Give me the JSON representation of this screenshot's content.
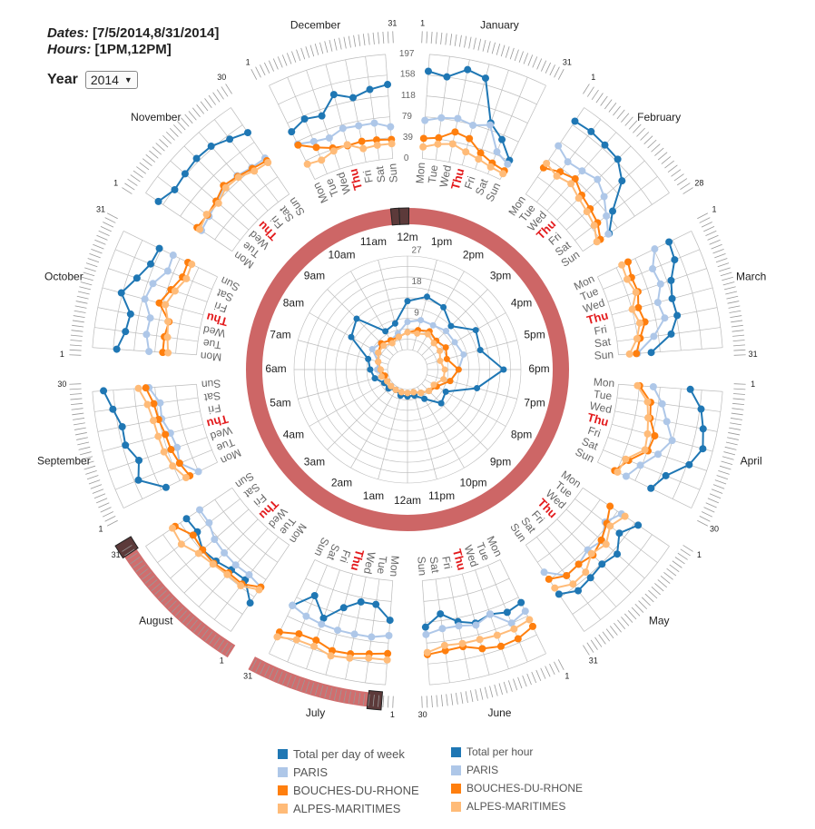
{
  "info": {
    "dates_label": "Dates:",
    "dates_value": "[7/5/2014,8/31/2014]",
    "hours_label": "Hours:",
    "hours_value": "[1PM,12PM]"
  },
  "year_selector": {
    "label": "Year",
    "value": "2014"
  },
  "colors": {
    "total": "#1f77b4",
    "paris": "#aec7e8",
    "bdr": "#ff7f0e",
    "am": "#ffbb78",
    "ring": "#cd6666",
    "ring_handle": "#5c3a3a",
    "thu": "#e31a1c",
    "grid": "#bbbbbb"
  },
  "legend_day": [
    {
      "label": "Total per day of week",
      "color": "#1f77b4"
    },
    {
      "label": "PARIS",
      "color": "#aec7e8"
    },
    {
      "label": "BOUCHES-DU-RHONE",
      "color": "#ff7f0e"
    },
    {
      "label": "ALPES-MARITIMES",
      "color": "#ffbb78"
    }
  ],
  "legend_hour": [
    {
      "label": "Total per hour",
      "color": "#1f77b4"
    },
    {
      "label": "PARIS",
      "color": "#aec7e8"
    },
    {
      "label": "BOUCHES-DU-RHONE",
      "color": "#ff7f0e"
    },
    {
      "label": "ALPES-MARITIMES",
      "color": "#ffbb78"
    }
  ],
  "chart_data": {
    "type": "radial-small-multiples",
    "months": [
      "January",
      "February",
      "March",
      "April",
      "May",
      "June",
      "July",
      "August",
      "September",
      "October",
      "November",
      "December"
    ],
    "month_days": [
      31,
      28,
      31,
      30,
      31,
      30,
      31,
      31,
      30,
      31,
      30,
      31
    ],
    "weekdays": [
      "Mon",
      "Tue",
      "Wed",
      "Thu",
      "Fri",
      "Sat",
      "Sun"
    ],
    "highlight_weekday": "Thu",
    "weekly_axis_ticks": [
      "197",
      "158",
      "118",
      "79",
      "39",
      "0"
    ],
    "weekly_axis_max": 197,
    "selected_range": {
      "start_month": "July",
      "start_day": 5,
      "end_month": "August",
      "end_day": 31
    },
    "weekly": {
      "January": {
        "total": [
          165,
          158,
          178,
          170,
          92,
          70,
          40
        ],
        "paris": [
          72,
          80,
          84,
          78,
          88,
          45,
          32
        ],
        "bdr": [
          38,
          42,
          58,
          52,
          32,
          22,
          18
        ],
        "am": [
          22,
          30,
          35,
          26,
          20,
          14,
          12
        ]
      },
      "February": {
        "total": [
          166,
          168,
          165,
          162,
          140,
          90,
          60
        ],
        "paris": [
          110,
          96,
          100,
          108,
          95,
          75,
          58
        ],
        "bdr": [
          60,
          72,
          80,
          66,
          60,
          54,
          40
        ],
        "am": [
          70,
          62,
          68,
          58,
          52,
          46,
          32
        ]
      },
      "March": {
        "total": [
          150,
          146,
          126,
          118,
          120,
          103,
          62
        ],
        "paris": [
          120,
          101,
          105,
          90,
          96,
          70,
          36
        ],
        "bdr": [
          64,
          58,
          60,
          52,
          58,
          44,
          34
        ],
        "am": [
          51,
          49,
          56,
          40,
          48,
          38,
          21
        ]
      },
      "April": {
        "total": [
          136,
          160,
          170,
          178,
          162,
          128,
          112
        ],
        "paris": [
          66,
          86,
          100,
          118,
          100,
          76,
          60
        ],
        "bdr": [
          40,
          64,
          68,
          84,
          80,
          52,
          36
        ],
        "am": [
          36,
          58,
          64,
          70,
          74,
          46,
          42
        ]
      },
      "May": {
        "total": [
          126,
          106,
          128,
          120,
          124,
          128,
          112
        ],
        "paris": [
          88,
          72,
          90,
          82,
          90,
          92,
          62
        ],
        "bdr": [
          62,
          76,
          88,
          96,
          90,
          92,
          78
        ],
        "am": [
          96,
          84,
          100,
          92,
          110,
          112,
          98
        ]
      },
      "June": {
        "total": [
          90,
          96,
          88,
          96,
          86,
          66,
          88
        ],
        "paris": [
          108,
          118,
          88,
          100,
          94,
          94,
          102
        ],
        "bdr": [
          140,
          150,
          152,
          146,
          134,
          136,
          140
        ],
        "am": [
          126,
          130,
          130,
          128,
          128,
          126,
          136
        ]
      },
      "July": {
        "total": [
          75,
          48,
          48,
          66,
          96,
          62,
          96
        ],
        "paris": [
          104,
          110,
          110,
          110,
          108,
          104,
          96
        ],
        "bdr": [
          138,
          142,
          148,
          150,
          140,
          140,
          152
        ],
        "am": [
          150,
          150,
          156,
          160,
          152,
          152,
          162
        ]
      },
      "August": {
        "total": [
          132,
          102,
          104,
          112,
          116,
          102,
          104
        ],
        "paris": [
          96,
          90,
          92,
          90,
          86,
          74,
          74
        ],
        "bdr": [
          96,
          112,
          112,
          118,
          116,
          112,
          130
        ],
        "am": [
          102,
          116,
          116,
          120,
          126,
          140,
          136
        ]
      },
      "September": {
        "total": [
          108,
          150,
          136,
          152,
          150,
          162,
          176
        ],
        "paris": [
          40,
          66,
          60,
          64,
          74,
          72,
          90
        ],
        "bdr": [
          58,
          66,
          72,
          74,
          80,
          84,
          96
        ],
        "am": [
          66,
          80,
          86,
          88,
          90,
          96,
          110
        ]
      },
      "October": {
        "total": [
          151,
          138,
          134,
          160,
          140,
          125,
          122
        ],
        "paris": [
          90,
          98,
          96,
          114,
          108,
          90,
          93
        ],
        "bdr": [
          64,
          64,
          60,
          86,
          72,
          60,
          62
        ],
        "am": [
          54,
          58,
          62,
          74,
          64,
          52,
          54
        ]
      },
      "November": {
        "total": [
          168,
          156,
          160,
          164,
          162,
          150,
          140
        ],
        "paris": [
          70,
          74,
          80,
          90,
          88,
          82,
          82
        ],
        "bdr": [
          80,
          78,
          82,
          92,
          86,
          80,
          76
        ],
        "am": [
          74,
          80,
          76,
          86,
          84,
          74,
          72
        ]
      },
      "December": {
        "total": [
          100,
          112,
          106,
          138,
          124,
          134,
          140
        ],
        "paris": [
          74,
          66,
          62,
          72,
          70,
          70,
          60
        ],
        "bdr": [
          72,
          54,
          42,
          38,
          40,
          38,
          36
        ],
        "am": [
          32,
          28,
          36,
          40,
          26,
          28,
          28
        ]
      }
    },
    "hours": [
      "12m",
      "1pm",
      "2pm",
      "3pm",
      "4pm",
      "5pm",
      "6pm",
      "7pm",
      "8pm",
      "9pm",
      "10pm",
      "11pm",
      "12am",
      "1am",
      "2am",
      "3am",
      "4am",
      "5am",
      "6am",
      "7am",
      "8am",
      "9am",
      "10am",
      "11am"
    ],
    "hourly_axis_ticks": [
      "27",
      "18",
      "9"
    ],
    "hourly_axis_max": 27,
    "hourly": {
      "total": [
        14,
        16,
        15,
        12,
        17,
        16,
        22,
        15,
        7,
        8,
        4,
        2,
        2,
        2,
        1,
        2,
        2,
        4,
        5,
        6,
        13,
        15,
        7,
        8
      ],
      "paris": [
        8,
        9,
        9,
        10,
        10,
        11,
        9,
        7,
        4,
        3,
        2,
        1,
        1,
        1,
        1,
        1,
        1,
        2,
        3,
        3,
        6,
        5,
        4,
        5
      ],
      "bdr": [
        5,
        6,
        7,
        6,
        7,
        6,
        9,
        7,
        4,
        3,
        2,
        1,
        1,
        1,
        1,
        1,
        1,
        1,
        2,
        3,
        4,
        5,
        4,
        4
      ],
      "am": [
        5,
        5,
        6,
        5,
        5,
        4,
        5,
        5,
        3,
        3,
        2,
        1,
        1,
        1,
        1,
        1,
        1,
        2,
        2,
        3,
        4,
        4,
        3,
        4
      ]
    },
    "selected_hours": {
      "start": "12m",
      "end": "12m"
    }
  }
}
